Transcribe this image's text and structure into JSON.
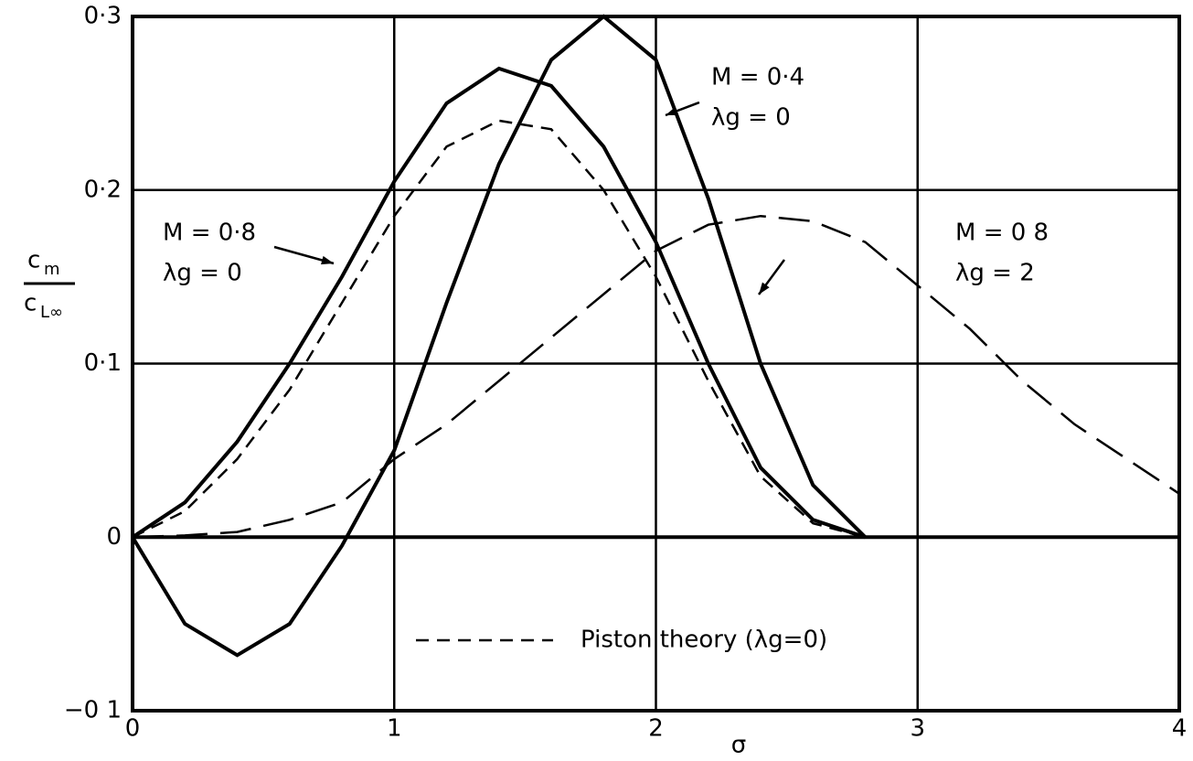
{
  "chart_data": {
    "type": "line",
    "x_label": "σ",
    "y_label": {
      "numerator": "c",
      "numerator_sub": "m",
      "denominator": "c",
      "denominator_sub": "L∞"
    },
    "x": [
      0,
      0.2,
      0.4,
      0.6,
      0.8,
      1.0,
      1.2,
      1.4,
      1.6,
      1.8,
      2.0,
      2.2,
      2.4,
      2.6,
      2.8,
      3.0,
      3.2,
      3.4,
      3.6,
      3.8,
      4.0
    ],
    "xlim": [
      0,
      4
    ],
    "ylim": [
      -0.1,
      0.3
    ],
    "xticks": [
      0,
      1,
      2,
      3,
      4
    ],
    "yticks": [
      {
        "value": -0.1,
        "label": "−0 1"
      },
      0,
      {
        "value": 0.1,
        "label": "0·1"
      },
      {
        "value": 0.2,
        "label": "0·2"
      },
      {
        "value": 0.3,
        "label": "0·3"
      }
    ],
    "grid": true,
    "series": [
      {
        "color": "#000000",
        "dash": "solid",
        "values": [
          0,
          -0.05,
          -0.068,
          -0.05,
          -0.005,
          0.05,
          0.135,
          0.215,
          0.275,
          0.3,
          0.275,
          0.195,
          0.1,
          0.03,
          0,
          null,
          null,
          null,
          null,
          null,
          null
        ]
      },
      {
        "color": "#000000",
        "dash": "solid",
        "values": [
          0,
          0.02,
          0.055,
          0.1,
          0.15,
          0.205,
          0.25,
          0.27,
          0.26,
          0.225,
          0.17,
          0.1,
          0.04,
          0.01,
          0,
          null,
          null,
          null,
          null,
          null,
          null
        ]
      },
      {
        "name": "Piston theory (λg=0)",
        "color": "#000000",
        "dash": "short",
        "values": [
          0,
          0.015,
          0.045,
          0.085,
          0.135,
          0.185,
          0.225,
          0.24,
          0.235,
          0.2,
          0.15,
          0.09,
          0.035,
          0.008,
          0,
          null,
          null,
          null,
          null,
          null,
          null
        ]
      },
      {
        "color": "#000000",
        "dash": "long",
        "values": [
          0,
          0.001,
          0.003,
          0.01,
          0.02,
          0.045,
          0.065,
          0.09,
          0.115,
          0.14,
          0.165,
          0.18,
          0.185,
          0.182,
          0.17,
          0.145,
          0.12,
          0.09,
          0.065,
          0.045,
          0.025
        ]
      }
    ],
    "annotations": [
      {
        "lines": [
          "M = 0·4",
          "λg = 0"
        ]
      },
      {
        "lines": [
          "M = 0·8",
          "λg = 0"
        ]
      },
      {
        "lines": [
          "M = 0 8",
          "λg = 2"
        ]
      }
    ]
  }
}
